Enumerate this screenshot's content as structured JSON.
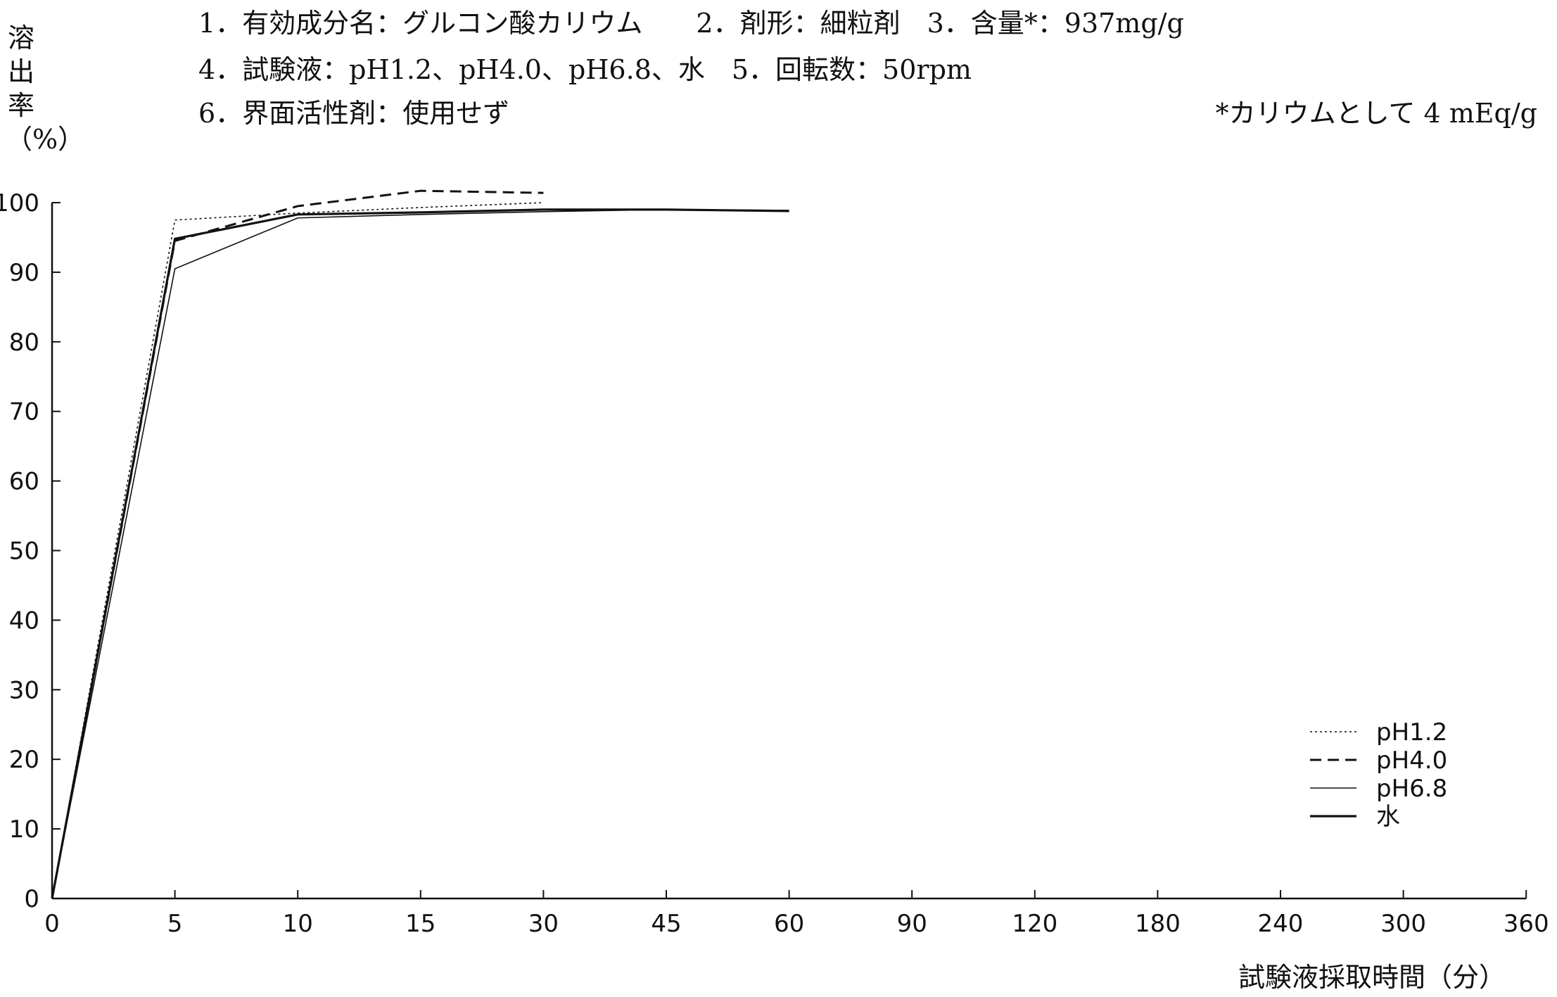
{
  "header": {
    "line1": "1．有効成分名：グルコン酸カリウム　　2．剤形：細粒剤　3．含量*：937mg/g",
    "line2": "4．試験液：pH1.2、pH4.0、pH6.8、水　5．回転数：50rpm",
    "line3": "6．界面活性剤：使用せず",
    "footnote": "*カリウムとして 4 mEq/g"
  },
  "chart_data": {
    "type": "line",
    "title": "",
    "ylabel": "溶出率（%）",
    "xlabel": "試験液採取時間（分）",
    "x_categories": [
      "0",
      "5",
      "10",
      "15",
      "30",
      "45",
      "60",
      "90",
      "120",
      "180",
      "240",
      "300",
      "360"
    ],
    "y_ticks": [
      0,
      10,
      20,
      30,
      40,
      50,
      60,
      70,
      80,
      90,
      100
    ],
    "ylim": [
      0,
      100
    ],
    "x_scale": "categorical, evenly spaced time points",
    "legend_position": "bottom-right",
    "grid": false,
    "series": [
      {
        "name": "pH1.2",
        "style": "dotted",
        "x": [
          "0",
          "5",
          "10",
          "15",
          "30"
        ],
        "values": [
          0,
          97.5,
          98.5,
          99.3,
          100
        ]
      },
      {
        "name": "pH4.0",
        "style": "dashed",
        "x": [
          "0",
          "5",
          "10",
          "15",
          "30"
        ],
        "values": [
          0,
          94.5,
          99.5,
          101.7,
          101.4
        ]
      },
      {
        "name": "pH6.8",
        "style": "thin-solid",
        "x": [
          "0",
          "5",
          "10",
          "15",
          "30",
          "45",
          "60"
        ],
        "values": [
          0,
          90.5,
          97.8,
          98.3,
          98.7,
          99.0,
          98.9
        ]
      },
      {
        "name": "水",
        "style": "thick-solid",
        "x": [
          "0",
          "5",
          "10",
          "15",
          "30",
          "45",
          "60"
        ],
        "values": [
          0,
          94.8,
          98.3,
          98.6,
          99.0,
          99.0,
          98.8
        ]
      }
    ]
  }
}
